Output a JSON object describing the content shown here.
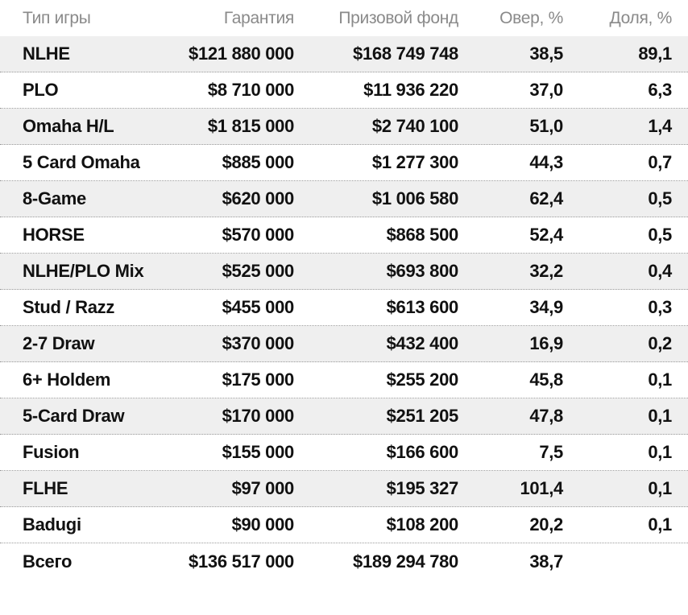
{
  "headers": [
    "Тип игры",
    "Гарантия",
    "Призовой фонд",
    "Овер, %",
    "Доля, %"
  ],
  "rows": [
    [
      "NLHE",
      "$121 880 000",
      "$168 749 748",
      "38,5",
      "89,1"
    ],
    [
      "PLO",
      "$8 710 000",
      "$11 936 220",
      "37,0",
      "6,3"
    ],
    [
      "Omaha H/L",
      "$1 815 000",
      "$2 740 100",
      "51,0",
      "1,4"
    ],
    [
      "5 Card Omaha",
      "$885 000",
      "$1 277 300",
      "44,3",
      "0,7"
    ],
    [
      "8-Game",
      "$620 000",
      "$1 006 580",
      "62,4",
      "0,5"
    ],
    [
      "HORSE",
      "$570 000",
      "$868 500",
      "52,4",
      "0,5"
    ],
    [
      "NLHE/PLO Mix",
      "$525 000",
      "$693 800",
      "32,2",
      "0,4"
    ],
    [
      "Stud / Razz",
      "$455 000",
      "$613 600",
      "34,9",
      "0,3"
    ],
    [
      "2-7 Draw",
      "$370 000",
      "$432 400",
      "16,9",
      "0,2"
    ],
    [
      "6+ Holdem",
      "$175 000",
      "$255 200",
      "45,8",
      "0,1"
    ],
    [
      "5-Card Draw",
      "$170 000",
      "$251 205",
      "47,8",
      "0,1"
    ],
    [
      "Fusion",
      "$155 000",
      "$166 600",
      "7,5",
      "0,1"
    ],
    [
      "FLHE",
      "$97 000",
      "$195 327",
      "101,4",
      "0,1"
    ],
    [
      "Badugi",
      "$90 000",
      "$108 200",
      "20,2",
      "0,1"
    ]
  ],
  "total": [
    "Всего",
    "$136 517 000",
    "$189 294 780",
    "38,7",
    ""
  ]
}
